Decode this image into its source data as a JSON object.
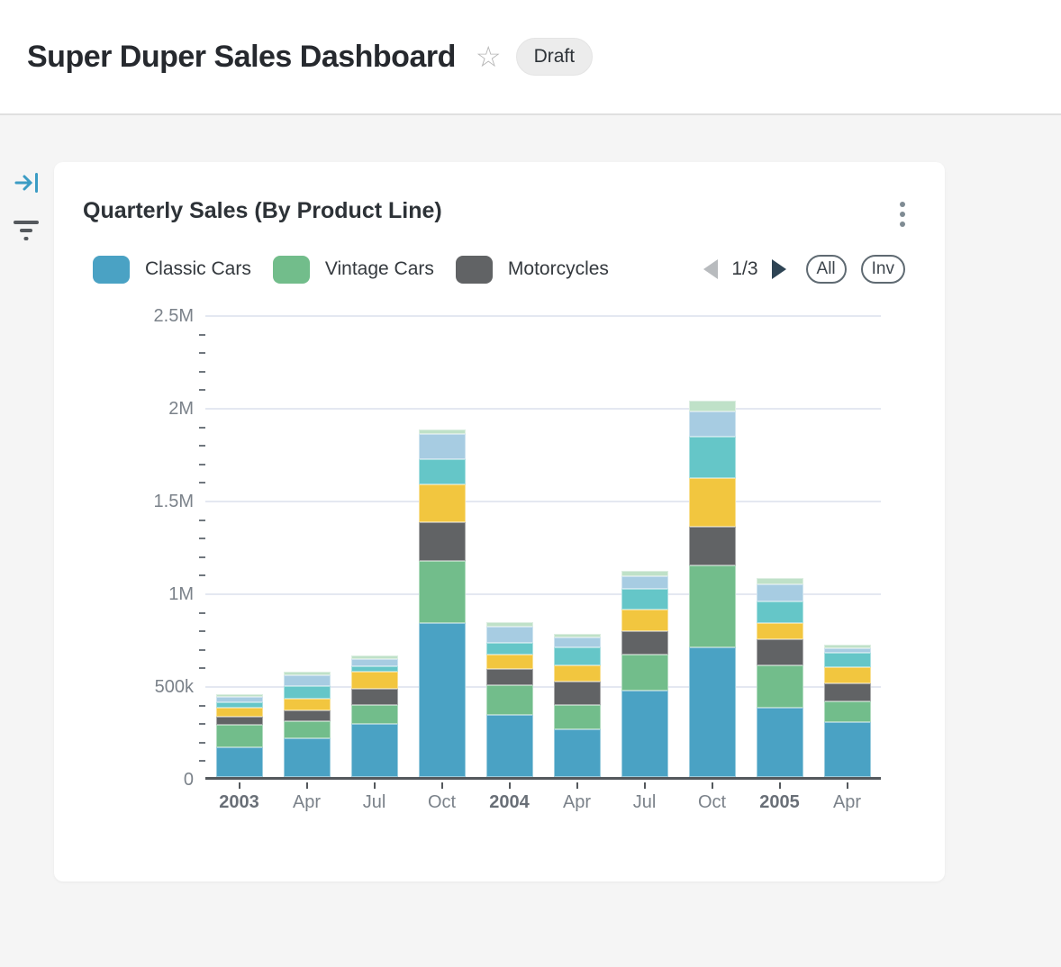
{
  "header": {
    "title": "Super Duper Sales Dashboard",
    "status_badge": "Draft"
  },
  "toolbar": {
    "page_indicator": "1/3",
    "all_button": "All",
    "inv_button": "Inv"
  },
  "colors": {
    "rail_collapse_icon": "#3b9cc4",
    "rail_filter_icon": "#55595d",
    "pager_next_enabled": "#2e4454",
    "pager_prev_disabled": "#b8bbbe",
    "gridline": "#e4e8f1",
    "axis_line": "#54585c"
  },
  "chart_data": {
    "type": "bar",
    "stacked": true,
    "title": "Quarterly Sales (By Product Line)",
    "categories": [
      "2003",
      "Apr",
      "Jul",
      "Oct",
      "2004",
      "Apr",
      "Jul",
      "Oct",
      "2005",
      "Apr"
    ],
    "bold_category_labels": [
      "2003",
      "2004",
      "2005"
    ],
    "series": [
      {
        "name": "Classic Cars",
        "color": "#4aa2c4",
        "in_legend": true,
        "values": [
          160000,
          207000,
          285000,
          830000,
          335000,
          255000,
          466000,
          698000,
          373000,
          297000
        ]
      },
      {
        "name": "Vintage Cars",
        "color": "#72bd8b",
        "in_legend": true,
        "values": [
          122000,
          94000,
          102000,
          336000,
          162000,
          134000,
          196000,
          443000,
          230000,
          109000
        ]
      },
      {
        "name": "Motorcycles",
        "color": "#616365",
        "in_legend": true,
        "values": [
          41000,
          57000,
          88000,
          208000,
          84000,
          125000,
          125000,
          209000,
          140000,
          97000
        ]
      },
      {
        "name": "unlabeled-yellow",
        "color": "#f2c63f",
        "in_legend": false,
        "values": [
          49000,
          65000,
          91000,
          206000,
          78000,
          86000,
          118000,
          260000,
          88000,
          90000
        ]
      },
      {
        "name": "unlabeled-teal",
        "color": "#65c6c8",
        "in_legend": false,
        "values": [
          29000,
          68000,
          33000,
          135000,
          65000,
          97000,
          109000,
          227000,
          118000,
          78000
        ]
      },
      {
        "name": "unlabeled-light-blue",
        "color": "#a7cce2",
        "in_legend": false,
        "values": [
          31000,
          59000,
          39000,
          136000,
          89000,
          57000,
          70000,
          134000,
          92000,
          24000
        ]
      },
      {
        "name": "unlabeled-pale-green",
        "color": "#bfe1c8",
        "in_legend": false,
        "values": [
          13000,
          16000,
          16000,
          21000,
          24000,
          19000,
          28000,
          60000,
          33000,
          21000
        ]
      }
    ],
    "ylim": [
      0,
      2500000
    ],
    "y_ticks": [
      {
        "label": "0",
        "value": 0
      },
      {
        "label": "500k",
        "value": 500000
      },
      {
        "label": "1M",
        "value": 1000000
      },
      {
        "label": "1.5M",
        "value": 1500000
      },
      {
        "label": "2M",
        "value": 2000000
      },
      {
        "label": "2.5M",
        "value": 2500000
      }
    ],
    "minor_tick_interval": 100000,
    "grid": "horizontal-major",
    "legend_position": "top",
    "legend_pagination": {
      "current": 1,
      "total": 3
    }
  }
}
